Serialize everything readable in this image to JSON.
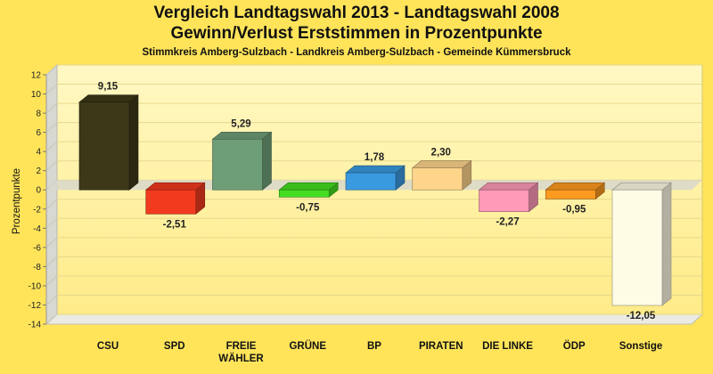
{
  "chart_data": {
    "type": "bar",
    "title": "Vergleich Landtagswahl 2013 - Landtagswahl 2008",
    "subtitle": "Gewinn/Verlust Erststimmen in Prozentpunkte",
    "caption": "Stimmkreis Amberg-Sulzbach - Landkreis Amberg-Sulzbach - Gemeinde Kümmersbruck",
    "ylabel": "Prozentpunkte",
    "xlabel": "",
    "ylim": [
      -14,
      12
    ],
    "yticks": [
      12,
      10,
      8,
      6,
      4,
      2,
      0,
      -2,
      -4,
      -6,
      -8,
      -10,
      -12,
      -14
    ],
    "grid": true,
    "categories": [
      "CSU",
      "SPD",
      "FREIE WÄHLER",
      "GRÜNE",
      "BP",
      "PIRATEN",
      "DIE LINKE",
      "ÖDP",
      "Sonstige"
    ],
    "category_lines": [
      [
        "CSU"
      ],
      [
        "SPD"
      ],
      [
        "FREIE",
        "WÄHLER"
      ],
      [
        "GRÜNE"
      ],
      [
        "BP"
      ],
      [
        "PIRATEN"
      ],
      [
        "DIE LINKE"
      ],
      [
        "ÖDP"
      ],
      [
        "Sonstige"
      ]
    ],
    "values": [
      9.15,
      -2.51,
      5.29,
      -0.75,
      1.78,
      2.3,
      -2.27,
      -0.95,
      -12.05
    ],
    "value_labels": [
      "9,15",
      "-2,51",
      "5,29",
      "-0,75",
      "1,78",
      "2,30",
      "-2,27",
      "-0,95",
      "-12,05"
    ],
    "colors": [
      "#3d3818",
      "#f23a1e",
      "#6e9e78",
      "#44dd22",
      "#3a9ae0",
      "#ffd58c",
      "#ff9ab8",
      "#ff9a20",
      "#fffce6"
    ]
  }
}
